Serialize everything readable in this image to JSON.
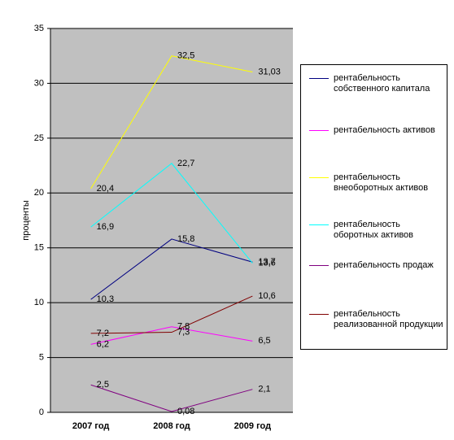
{
  "chart_data": {
    "type": "line",
    "y_label": "проценты",
    "categories": [
      "2007 год",
      "2008 год",
      "2009 год"
    ],
    "series": [
      {
        "name": "рентабельность собственного капитала",
        "color": "#000080",
        "values": [
          10.3,
          15.8,
          13.7
        ],
        "value_labels": [
          "10,3",
          "15,8",
          "13,7"
        ]
      },
      {
        "name": "рентабельность активов",
        "color": "#ff00ff",
        "values": [
          6.2,
          7.8,
          6.5
        ],
        "value_labels": [
          "6,2",
          "7,8",
          "6,5"
        ]
      },
      {
        "name": "рентабельность внеоборотных активов",
        "color": "#ffff00",
        "values": [
          20.4,
          32.5,
          31.03
        ],
        "value_labels": [
          "20,4",
          "32,5",
          "31,03"
        ]
      },
      {
        "name": "рентабельность оборотных активов",
        "color": "#00ffff",
        "values": [
          16.9,
          22.7,
          13.6
        ],
        "value_labels": [
          "16,9",
          "22,7",
          "13,6"
        ]
      },
      {
        "name": "рентабельность продаж",
        "color": "#800080",
        "values": [
          2.5,
          0.08,
          2.1
        ],
        "value_labels": [
          "2,5",
          "0,08",
          "2,1"
        ]
      },
      {
        "name": "рентабельность реализованной продукции",
        "color": "#800000",
        "values": [
          7.2,
          7.3,
          10.6
        ],
        "value_labels": [
          "7,2",
          "7,3",
          "10,6"
        ]
      }
    ],
    "ylim": [
      0,
      35
    ],
    "yticks": [
      0,
      5,
      10,
      15,
      20,
      25,
      30,
      35
    ],
    "grid": true,
    "legend": "right"
  }
}
